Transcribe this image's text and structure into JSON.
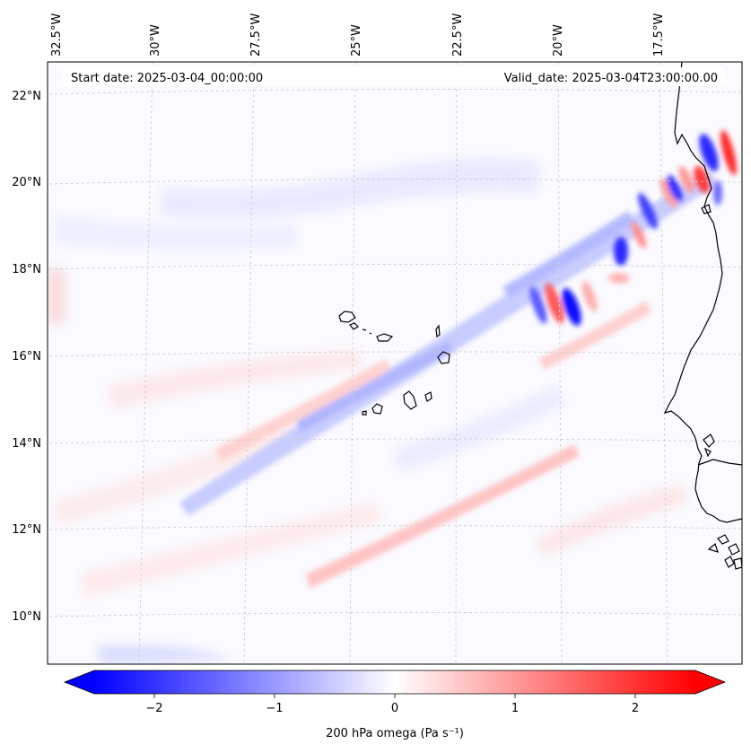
{
  "header": {
    "start_date": "Start date: 2025-03-04_00:00:00",
    "valid_date": "Valid_date: 2025-03-04T23:00:00.00"
  },
  "map": {
    "projection": "Lambert conformal",
    "lon_labels": [
      "32.5°W",
      "30°W",
      "27.5°W",
      "25°W",
      "22.5°W",
      "20°W",
      "17.5°W"
    ],
    "lat_labels": [
      "22°N",
      "20°N",
      "18°N",
      "16°N",
      "14°N",
      "12°N",
      "10°N"
    ],
    "features": [
      "cape-verde-islands",
      "west-africa-coastline",
      "bijagos-islands"
    ],
    "gridlines": "dashed",
    "field": "200 hPa omega"
  },
  "colorbar": {
    "label": "200 hPa omega (Pa s⁻¹)",
    "ticks": [
      "−2",
      "−1",
      "0",
      "1",
      "2"
    ],
    "tick_values": [
      -2,
      -1,
      0,
      1,
      2
    ],
    "range": [
      -2.5,
      2.5
    ],
    "extend": "both",
    "colormap": "bwr",
    "colors": {
      "min": "#0000ff",
      "mid": "#ffffff",
      "max": "#ff0000"
    }
  }
}
